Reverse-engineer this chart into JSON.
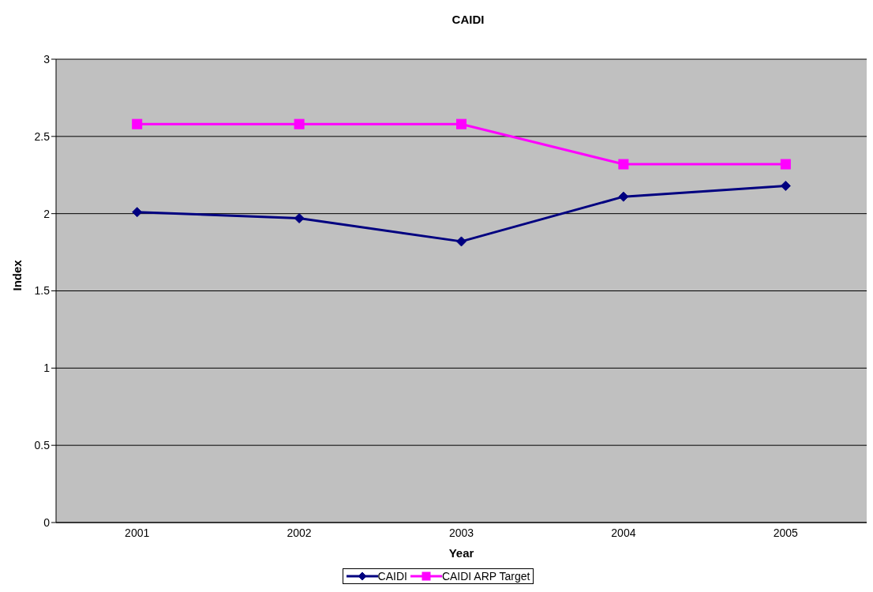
{
  "chart_data": {
    "type": "line",
    "title": "CAIDI",
    "xlabel": "Year",
    "ylabel": "Index",
    "categories": [
      "2001",
      "2002",
      "2003",
      "2004",
      "2005"
    ],
    "series": [
      {
        "name": "CAIDI",
        "color": "#000080",
        "marker": "diamond",
        "values": [
          2.01,
          1.97,
          1.82,
          2.11,
          2.18
        ]
      },
      {
        "name": "CAIDI ARP Target",
        "color": "#ff00ff",
        "marker": "square",
        "values": [
          2.58,
          2.58,
          2.58,
          2.32,
          2.32
        ]
      }
    ],
    "ylim": [
      0,
      3
    ],
    "yticks": [
      0,
      0.5,
      1,
      1.5,
      2,
      2.5,
      3
    ],
    "grid": "y",
    "legend": "bottom"
  }
}
